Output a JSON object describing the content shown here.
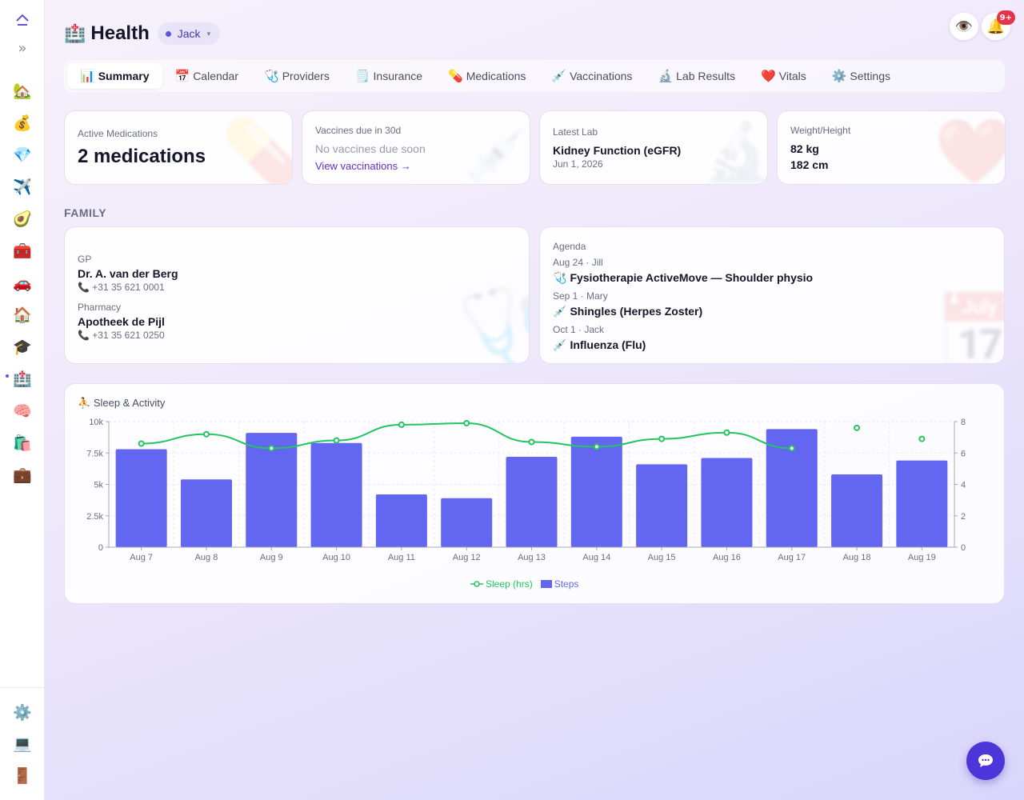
{
  "sidebar": {
    "top": [
      {
        "name": "logo-icon",
        "glyph": "⏫"
      },
      {
        "name": "expand-icon",
        "glyph": "»"
      }
    ],
    "items": [
      {
        "name": "sidebar-item-home",
        "icon": "🏡"
      },
      {
        "name": "sidebar-item-finance",
        "icon": "💰"
      },
      {
        "name": "sidebar-item-assets",
        "icon": "💎"
      },
      {
        "name": "sidebar-item-travel",
        "icon": "✈️"
      },
      {
        "name": "sidebar-item-food",
        "icon": "🥑"
      },
      {
        "name": "sidebar-item-toolbox",
        "icon": "🧰"
      },
      {
        "name": "sidebar-item-vehicles",
        "icon": "🚗"
      },
      {
        "name": "sidebar-item-house",
        "icon": "🏠"
      },
      {
        "name": "sidebar-item-education",
        "icon": "🎓"
      },
      {
        "name": "sidebar-item-health",
        "icon": "🏥"
      },
      {
        "name": "sidebar-item-mind",
        "icon": "🧠"
      },
      {
        "name": "sidebar-item-shopping",
        "icon": "🛍️"
      },
      {
        "name": "sidebar-item-work",
        "icon": "💼"
      }
    ],
    "bottom": [
      {
        "name": "sidebar-item-settings",
        "icon": "⚙️"
      },
      {
        "name": "sidebar-item-device",
        "icon": "💻"
      },
      {
        "name": "sidebar-item-logout",
        "icon": "🚪"
      }
    ]
  },
  "header": {
    "icon": "🏥",
    "title": "Health",
    "member": "Jack",
    "member_caret": "▾",
    "eye_icon": "👁️",
    "bell_icon": "🔔",
    "notification_count": "9+"
  },
  "tabs": [
    {
      "icon": "📊",
      "label": "Summary",
      "active": true
    },
    {
      "icon": "📅",
      "label": "Calendar"
    },
    {
      "icon": "🩺",
      "label": "Providers"
    },
    {
      "icon": "🗒️",
      "label": "Insurance"
    },
    {
      "icon": "💊",
      "label": "Medications"
    },
    {
      "icon": "💉",
      "label": "Vaccinations"
    },
    {
      "icon": "🔬",
      "label": "Lab Results"
    },
    {
      "icon": "❤️",
      "label": "Vitals"
    },
    {
      "icon": "⚙️",
      "label": "Settings"
    }
  ],
  "cards": {
    "medications": {
      "label": "Active Medications",
      "value": "2 medications",
      "deco": "💊"
    },
    "vaccines": {
      "label": "Vaccines due in 30d",
      "value": "No vaccines due soon",
      "link": "View vaccinations →",
      "deco": "💉"
    },
    "lab": {
      "label": "Latest Lab",
      "value": "Kidney Function (eGFR)",
      "date": "Jun 1, 2026",
      "deco": "🔬"
    },
    "weight": {
      "label": "Weight/Height",
      "weight": "82 kg",
      "height": "182 cm",
      "deco": "❤️"
    }
  },
  "family": {
    "section_label": "FAMILY",
    "gp": {
      "label": "GP",
      "name": "Dr. A. van der Berg",
      "phone_icon": "📞",
      "phone": "+31 35 621 0001"
    },
    "pharmacy": {
      "label": "Pharmacy",
      "name": "Apotheek de Pijl",
      "phone_icon": "📞",
      "phone": "+31 35 621 0250"
    },
    "contacts_deco": "🩺"
  },
  "agenda": {
    "label": "Agenda",
    "deco": "📅",
    "items": [
      {
        "meta": "Aug 24 · Jill",
        "icon": "🩺",
        "title": "Fysiotherapie ActiveMove — Shoulder physio"
      },
      {
        "meta": "Sep 1 · Mary",
        "icon": "💉",
        "title": "Shingles (Herpes Zoster)"
      },
      {
        "meta": "Oct 1 · Jack",
        "icon": "💉",
        "title": "Influenza (Flu)"
      }
    ]
  },
  "chart_title_icon": "⛹️",
  "chart_data": {
    "type": "bar",
    "title": "Sleep & Activity",
    "categories": [
      "Aug 7",
      "Aug 8",
      "Aug 9",
      "Aug 10",
      "Aug 11",
      "Aug 12",
      "Aug 13",
      "Aug 14",
      "Aug 15",
      "Aug 16",
      "Aug 17",
      "Aug 18",
      "Aug 19"
    ],
    "series": [
      {
        "name": "Steps",
        "type": "bar",
        "axis": "left",
        "color": "#6366f1",
        "values": [
          7800,
          5400,
          9100,
          8300,
          4200,
          3900,
          7200,
          8800,
          6600,
          7100,
          9400,
          5800,
          6900
        ]
      },
      {
        "name": "Sleep (hrs)",
        "type": "line",
        "axis": "right",
        "color": "#22c55e",
        "values": [
          6.6,
          7.2,
          6.3,
          6.8,
          7.8,
          7.9,
          6.7,
          6.4,
          6.9,
          7.3,
          6.3,
          7.6,
          6.9
        ]
      }
    ],
    "left_axis": {
      "ylim": [
        0,
        10000
      ],
      "ticks": [
        "0",
        "2.5k",
        "5k",
        "7.5k",
        "10k"
      ]
    },
    "right_axis": {
      "ylim": [
        0,
        8
      ],
      "ticks": [
        "0",
        "2",
        "4",
        "6",
        "8"
      ]
    },
    "legend_placement": "bottom-center",
    "grid": true
  },
  "chat_icon": "💬"
}
